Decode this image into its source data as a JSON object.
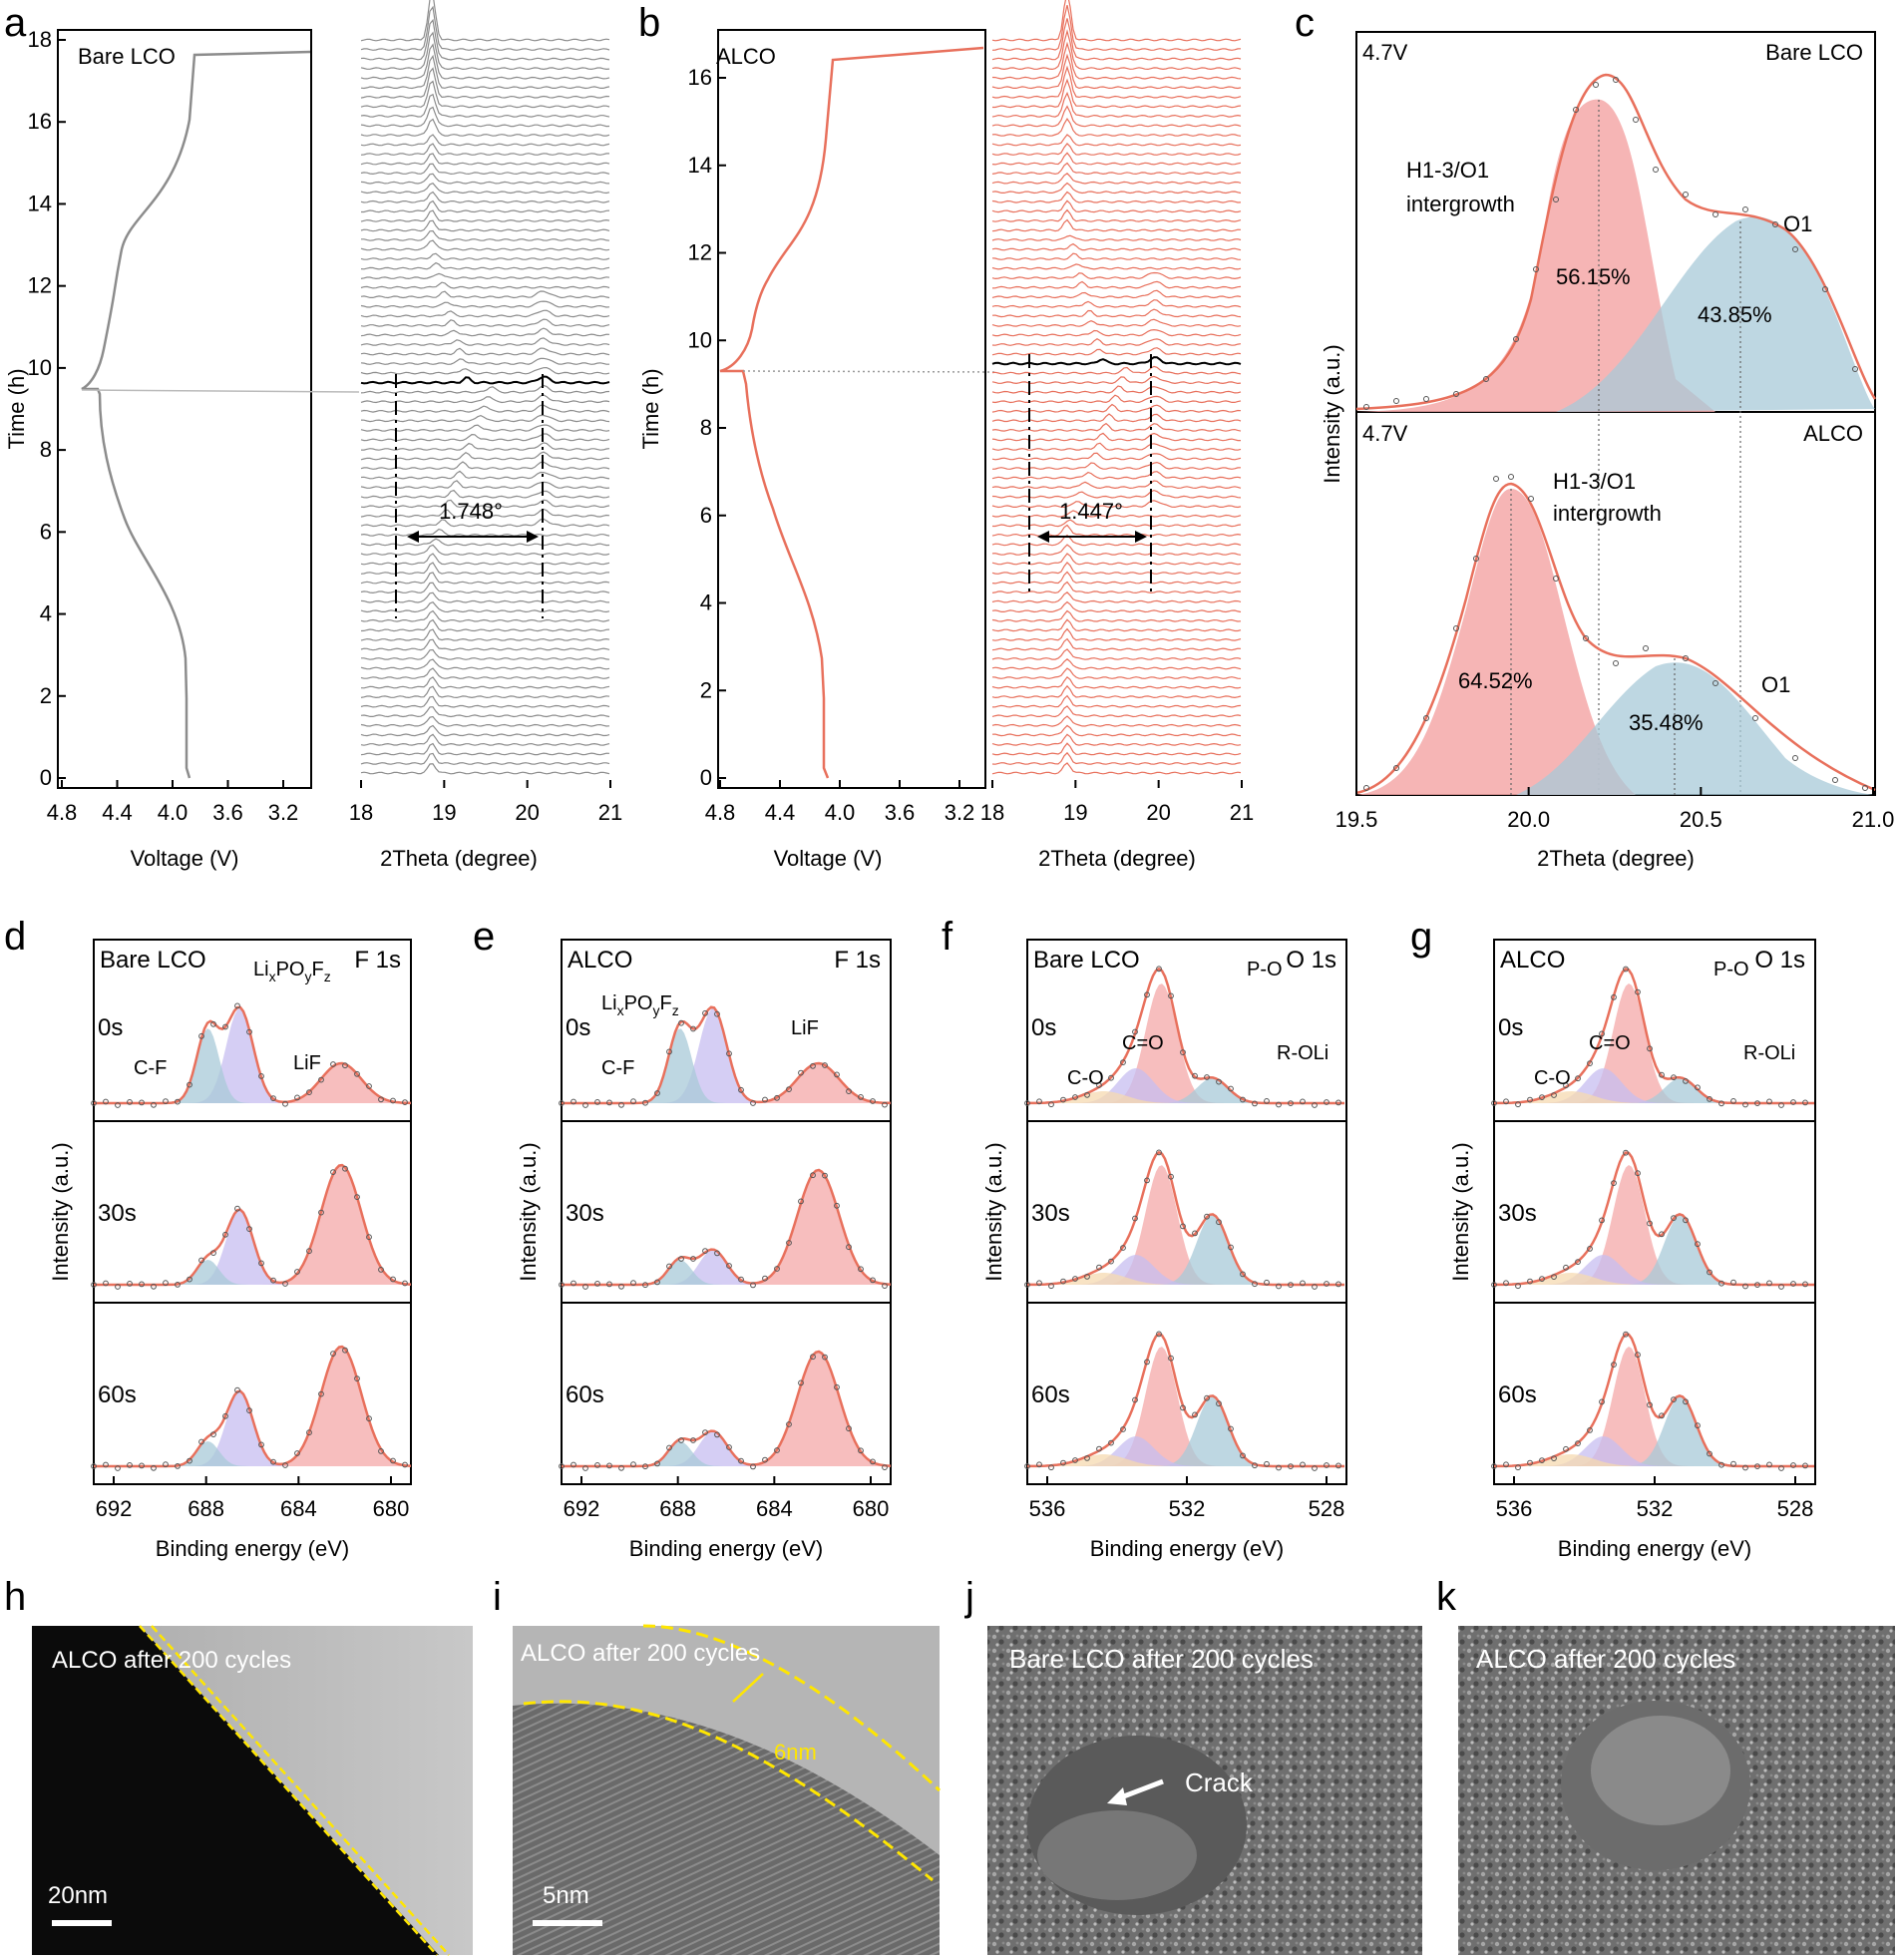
{
  "colors": {
    "gray": "#8c8c8c",
    "orange": "#e8705c",
    "pink_fill": "#f4a8a8",
    "blue_fill": "#a8cad8",
    "purple_fill": "#c7bdf0",
    "yellow_fill": "#f5d9b0",
    "axis": "#000000",
    "dashed_yellow": "#ffe600"
  },
  "panels": {
    "a": {
      "letter": "a",
      "sample": "Bare LCO",
      "x1_label": "Voltage (V)",
      "x2_label": "2Theta (degree)",
      "y_label": "Time (h)",
      "delta": "1.748°",
      "y_ticks": [
        "0",
        "2",
        "4",
        "6",
        "8",
        "10",
        "12",
        "14",
        "16",
        "18"
      ],
      "v_ticks": [
        "4.8",
        "4.4",
        "4.0",
        "3.6",
        "3.2"
      ],
      "t_ticks": [
        "18",
        "19",
        "20",
        "21"
      ]
    },
    "b": {
      "letter": "b",
      "sample": "ALCO",
      "x1_label": "Voltage (V)",
      "x2_label": "2Theta (degree)",
      "y_label": "Time (h)",
      "delta": "1.447°",
      "y_ticks": [
        "0",
        "2",
        "4",
        "6",
        "8",
        "10",
        "12",
        "14",
        "16"
      ],
      "v_ticks": [
        "4.8",
        "4.4",
        "4.0",
        "3.6",
        "3.2"
      ],
      "t_ticks": [
        "18",
        "19",
        "20",
        "21"
      ]
    },
    "c": {
      "letter": "c",
      "y_label": "Intensity (a.u.)",
      "x_label": "2Theta (degree)",
      "x_ticks": [
        "19.5",
        "20.0",
        "20.5",
        "21.0"
      ],
      "top": {
        "voltage": "4.7V",
        "sample": "Bare LCO",
        "phase1": "H1-3/O1",
        "phase1b": "intergrowth",
        "phase2": "O1",
        "pct1": "56.15%",
        "pct2": "43.85%"
      },
      "bottom": {
        "voltage": "4.7V",
        "sample": "ALCO",
        "phase1": "H1-3/O1",
        "phase1b": "intergrowth",
        "phase2": "O1",
        "pct1": "64.52%",
        "pct2": "35.48%"
      }
    },
    "d": {
      "letter": "d",
      "sample": "Bare LCO",
      "core": "F 1s",
      "times": [
        "0s",
        "30s",
        "60s"
      ],
      "labels": [
        "C-F",
        "LiF"
      ],
      "lipo_base": "Li",
      "lipo_x": "x",
      "lipo_mid": "PO",
      "lipo_y": "y",
      "lipo_f": "F",
      "lipo_z": "z",
      "x_ticks": [
        "692",
        "688",
        "684",
        "680"
      ],
      "x_label": "Binding energy (eV)",
      "y_label": "Intensity (a.u.)"
    },
    "e": {
      "letter": "e",
      "sample": "ALCO",
      "core": "F 1s",
      "times": [
        "0s",
        "30s",
        "60s"
      ],
      "labels": [
        "C-F",
        "LiF"
      ],
      "lipo_base": "Li",
      "lipo_x": "x",
      "lipo_mid": "PO",
      "lipo_y": "y",
      "lipo_f": "F",
      "lipo_z": "z",
      "x_ticks": [
        "692",
        "688",
        "684",
        "680"
      ],
      "x_label": "Binding energy (eV)",
      "y_label": "Intensity (a.u.)"
    },
    "f": {
      "letter": "f",
      "sample": "Bare LCO",
      "core": "O 1s",
      "times": [
        "0s",
        "30s",
        "60s"
      ],
      "labels": [
        "C-O",
        "C=O",
        "P-O",
        "R-OLi"
      ],
      "x_ticks": [
        "536",
        "532",
        "528"
      ],
      "x_label": "Binding energy (eV)",
      "y_label": "Intensity (a.u.)"
    },
    "g": {
      "letter": "g",
      "sample": "ALCO",
      "core": "O 1s",
      "times": [
        "0s",
        "30s",
        "60s"
      ],
      "labels": [
        "C-O",
        "C=O",
        "P-O",
        "R-OLi"
      ],
      "x_ticks": [
        "536",
        "532",
        "528"
      ],
      "x_label": "Binding energy (eV)",
      "y_label": "Intensity (a.u.)"
    },
    "h": {
      "letter": "h",
      "caption": "ALCO after 200 cycles",
      "scale": "20nm"
    },
    "i": {
      "letter": "i",
      "caption": "ALCO after 200 cycles",
      "scale": "5nm",
      "thickness": "6nm"
    },
    "j": {
      "letter": "j",
      "caption": "Bare LCO after 200 cycles",
      "crack": "Crack"
    },
    "k": {
      "letter": "k",
      "caption": "ALCO after 200 cycles"
    }
  }
}
